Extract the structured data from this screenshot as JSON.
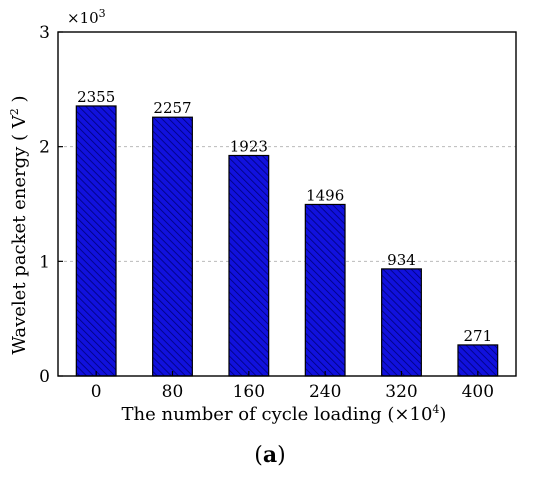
{
  "chart_data": {
    "type": "bar",
    "categories": [
      "0",
      "80",
      "160",
      "240",
      "320",
      "400"
    ],
    "values": [
      2355,
      2257,
      1923,
      1496,
      934,
      271
    ],
    "data_labels": [
      "2355",
      "2257",
      "1923",
      "1496",
      "934",
      "271"
    ],
    "ylim": [
      0,
      3000
    ],
    "yticks": [
      0,
      1000,
      2000,
      3000
    ],
    "ytick_labels": [
      "0",
      "1",
      "2",
      "3"
    ],
    "y_multiplier": {
      "base": "×10",
      "exponent": "3"
    },
    "xlabel": {
      "text": "The number of cycle loading (×10",
      "exponent": "4",
      "close": ")"
    },
    "ylabel": {
      "text": "Wavelet packet energy ( V",
      "exponent": "2",
      "close": " )"
    },
    "panel_label": {
      "open": "(",
      "letter": "a",
      "close": ")"
    },
    "grid": "horizontal dashed",
    "bar_fill": "#1111dd",
    "bar_hatch": "#00007a",
    "bar_edge": "#000000",
    "grid_color": "#bbbbbb"
  }
}
